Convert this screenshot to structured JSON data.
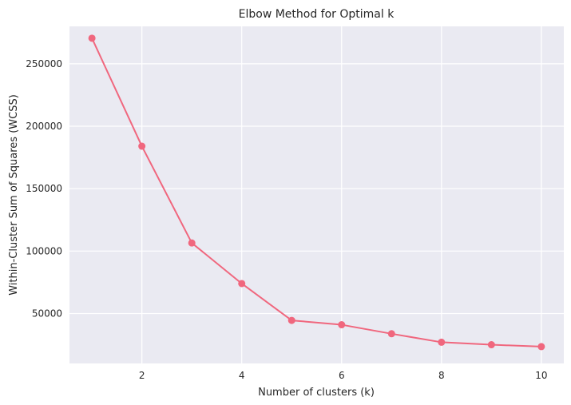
{
  "chart_data": {
    "type": "line",
    "title": "Elbow Method for Optimal k",
    "xlabel": "Number of clusters (k)",
    "ylabel": "Within-Cluster Sum of Squares (WCSS)",
    "x": [
      1,
      2,
      3,
      4,
      5,
      6,
      7,
      8,
      9,
      10
    ],
    "series": [
      {
        "values": [
          270500,
          184000,
          106500,
          74000,
          44500,
          41000,
          33800,
          27000,
          25000,
          23500
        ],
        "color": "#f0677e",
        "marker": "circle"
      }
    ],
    "xlim": [
      0.55,
      10.45
    ],
    "ylim": [
      10000,
      280000
    ],
    "xticks": [
      2,
      4,
      6,
      8,
      10
    ],
    "yticks": [
      50000,
      100000,
      150000,
      200000,
      250000
    ],
    "grid": true,
    "background": "#eaeaf2",
    "grid_color": "#ffffff"
  }
}
